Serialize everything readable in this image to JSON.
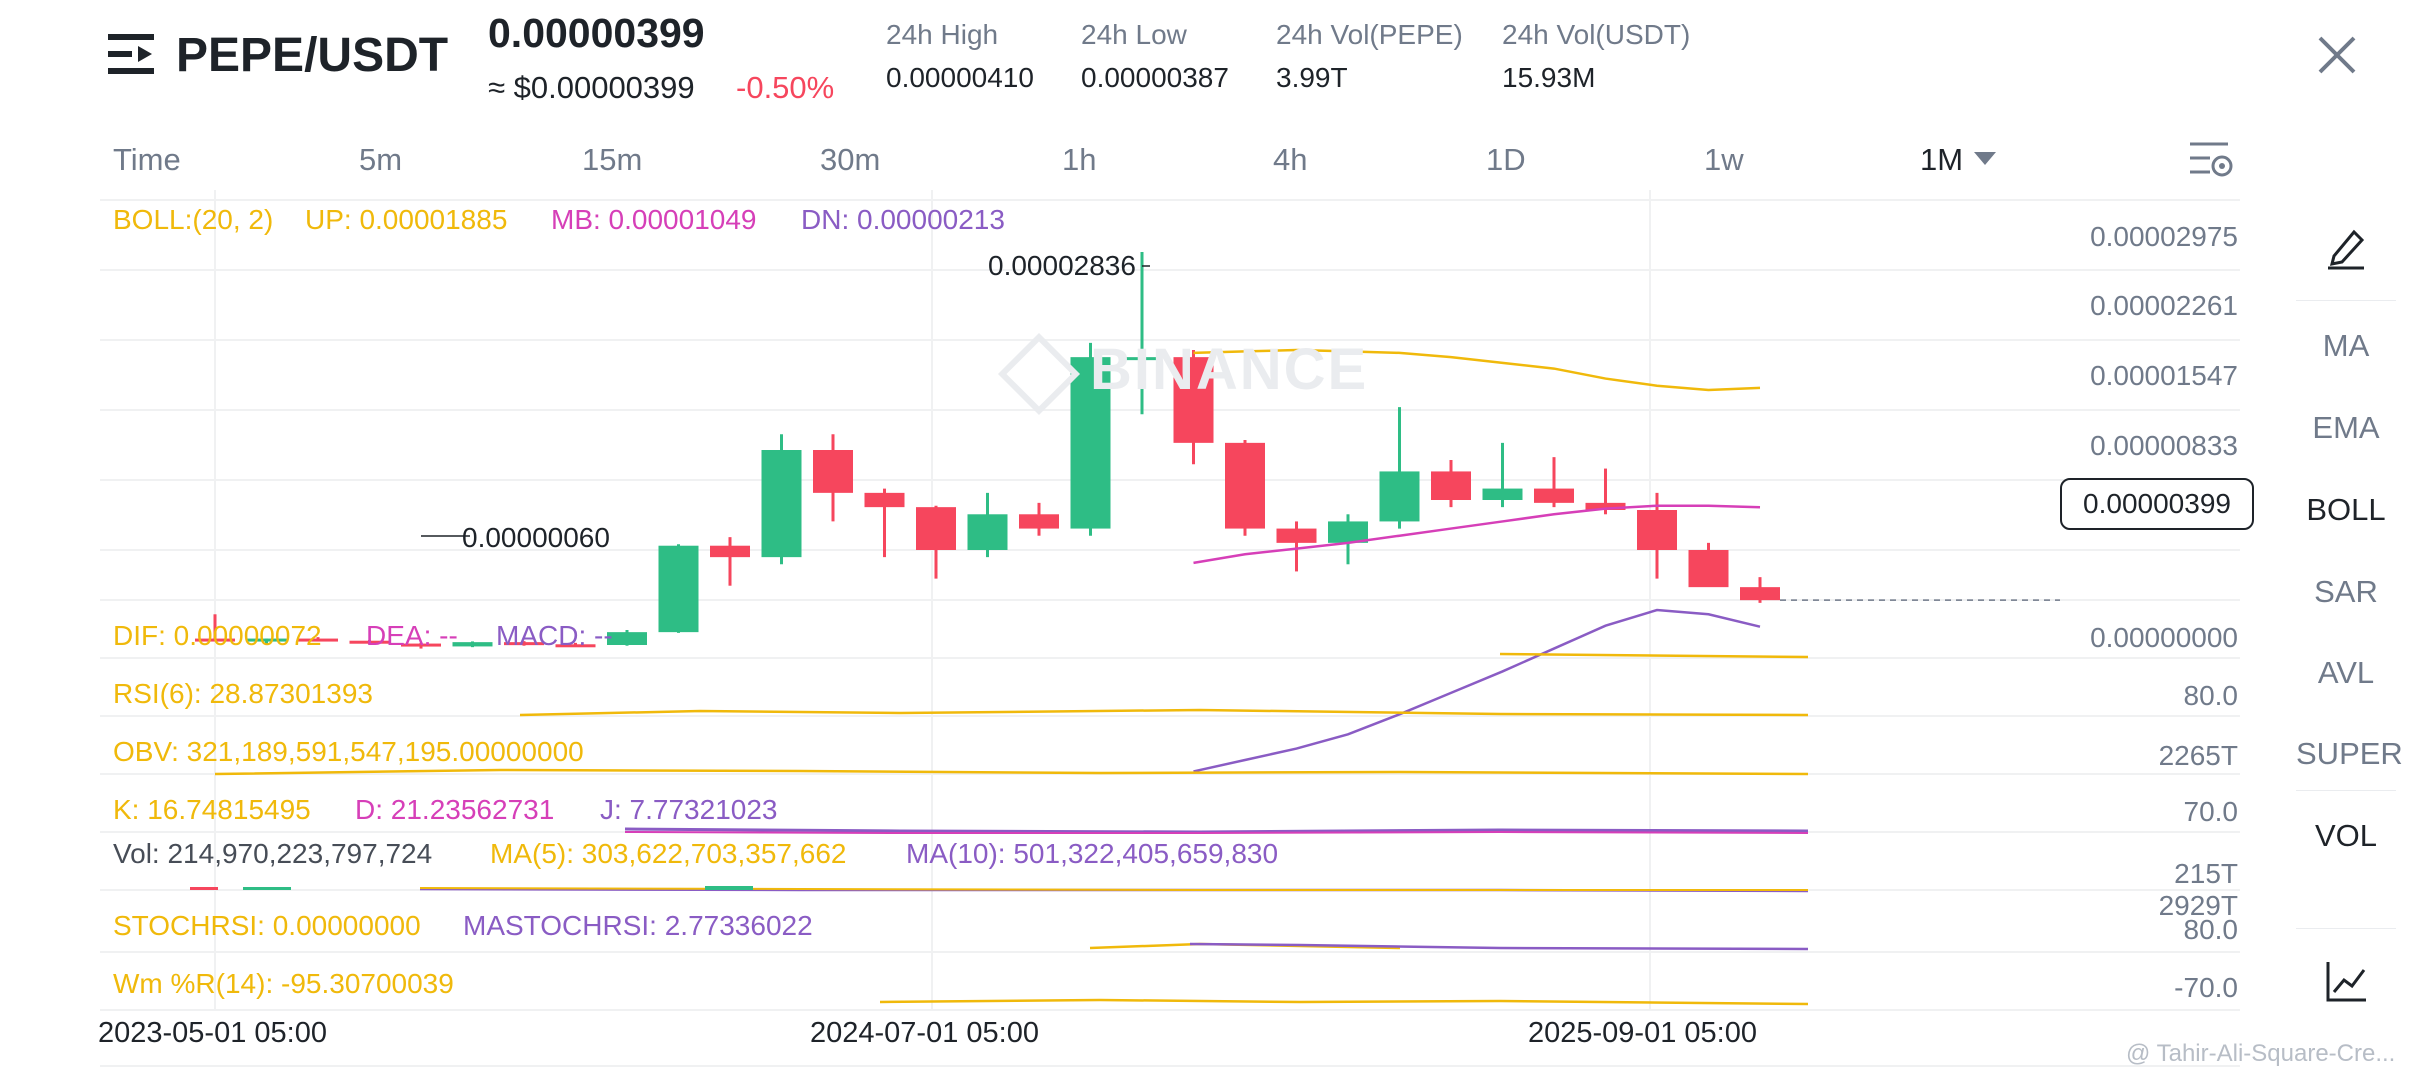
{
  "header": {
    "pair": "PEPE/USDT",
    "last_price": "0.00000399",
    "usd_price": "≈ $0.00000399",
    "change": "-0.50%",
    "stats": [
      {
        "label": "24h High",
        "value": "0.00000410"
      },
      {
        "label": "24h Low",
        "value": "0.00000387"
      },
      {
        "label": "24h Vol(PEPE)",
        "value": "3.99T"
      },
      {
        "label": "24h Vol(USDT)",
        "value": "15.93M"
      }
    ]
  },
  "intervals": [
    "Time",
    "5m",
    "15m",
    "30m",
    "1h",
    "4h",
    "1D",
    "1w",
    "1M"
  ],
  "active_interval": "1M",
  "side_panel": [
    "MA",
    "EMA",
    "BOLL",
    "SAR",
    "AVL",
    "SUPER",
    "VOL"
  ],
  "side_active": [
    "BOLL",
    "VOL"
  ],
  "indicators": {
    "boll": {
      "name": "BOLL:(20, 2)",
      "up": "UP: 0.00001885",
      "mb": "MB: 0.00001049",
      "dn": "DN: 0.00000213"
    },
    "macd": {
      "dif": "DIF: 0.00000072",
      "dea": "DEA: --",
      "macd": "MACD: --"
    },
    "rsi": "RSI(6): 28.87301393",
    "obv": "OBV: 321,189,591,547,195.00000000",
    "kdj": {
      "k": "K: 16.74815495",
      "d": "D: 21.23562731",
      "j": "J: 7.77321023"
    },
    "vol": {
      "vol": "Vol: 214,970,223,797,724",
      "ma5": "MA(5): 303,622,703,357,662",
      "ma10": "MA(10): 501,322,405,659,830"
    },
    "stochrsi": {
      "k": "STOCHRSI: 0.00000000",
      "d": "MASTOCHRSI: 2.77336022"
    },
    "wr": "Wm %R(14): -95.30700039"
  },
  "price_axis": [
    "0.00002975",
    "0.00002261",
    "0.00001547",
    "0.00000833"
  ],
  "current_price_label": "0.00000399",
  "high_marker": "0.00002836",
  "low_marker": "0.00000060",
  "sub_axis": {
    "macd": "0.00000000",
    "rsi": "80.0",
    "obv": "2265T",
    "kdj": "70.0",
    "vol": "215T",
    "vol_top": "2929T",
    "stochrsi": "80.0",
    "wr": "-70.0"
  },
  "dates": [
    "2023-05-01 05:00",
    "2024-07-01 05:00",
    "2025-09-01 05:00"
  ],
  "watermark": "BINANCE",
  "credit": "@ Tahir-Ali-Square-Cre...",
  "colors": {
    "up": "#2ebd85",
    "down": "#f6465d",
    "boll_up": "#f0b90b",
    "boll_mb": "#d63fb8",
    "boll_dn": "#8a5cc4",
    "label_yellow": "#f0b90b"
  },
  "chart_data": {
    "type": "candlestick",
    "interval": "1M",
    "candles": [
      {
        "o": 1.3e-06,
        "h": 3e-06,
        "l": 1.2e-06,
        "c": 1.2e-06
      },
      {
        "o": 1.2e-06,
        "h": 1.3e-06,
        "l": 9e-07,
        "c": 1.3e-06
      },
      {
        "o": 1.3e-06,
        "h": 1.4e-06,
        "l": 1.1e-06,
        "c": 1.15e-06
      },
      {
        "o": 1.15e-06,
        "h": 1.2e-06,
        "l": 9e-07,
        "c": 9.5e-07
      },
      {
        "o": 9.5e-07,
        "h": 1e-06,
        "l": 6e-07,
        "c": 7.5e-07
      },
      {
        "o": 7.5e-07,
        "h": 1.1e-06,
        "l": 7e-07,
        "c": 1.05e-06
      },
      {
        "o": 1.05e-06,
        "h": 1.12e-06,
        "l": 8e-07,
        "c": 9e-07
      },
      {
        "o": 9e-07,
        "h": 1e-06,
        "l": 8e-07,
        "c": 8.5e-07
      },
      {
        "o": 8.5e-07,
        "h": 1.9e-06,
        "l": 8e-07,
        "c": 1.75e-06
      },
      {
        "o": 1.75e-06,
        "h": 7.9e-06,
        "l": 1.7e-06,
        "c": 7.8e-06
      },
      {
        "o": 7.8e-06,
        "h": 8.4e-06,
        "l": 5e-06,
        "c": 7e-06
      },
      {
        "o": 7e-06,
        "h": 1.56e-05,
        "l": 6.5e-06,
        "c": 1.45e-05
      },
      {
        "o": 1.45e-05,
        "h": 1.56e-05,
        "l": 9.5e-06,
        "c": 1.15e-05
      },
      {
        "o": 1.15e-05,
        "h": 1.18e-05,
        "l": 7e-06,
        "c": 1.05e-05
      },
      {
        "o": 1.05e-05,
        "h": 1.06e-05,
        "l": 5.5e-06,
        "c": 7.5e-06
      },
      {
        "o": 7.5e-06,
        "h": 1.15e-05,
        "l": 7e-06,
        "c": 1e-05
      },
      {
        "o": 1e-05,
        "h": 1.08e-05,
        "l": 8.5e-06,
        "c": 9e-06
      },
      {
        "o": 9e-06,
        "h": 2.2e-05,
        "l": 8.5e-06,
        "c": 2.1e-05
      },
      {
        "o": 2.1e-05,
        "h": 2.836e-05,
        "l": 1.7e-05,
        "c": 2.1e-05
      },
      {
        "o": 2.1e-05,
        "h": 2.15e-05,
        "l": 1.35e-05,
        "c": 1.5e-05
      },
      {
        "o": 1.5e-05,
        "h": 1.52e-05,
        "l": 8.5e-06,
        "c": 9e-06
      },
      {
        "o": 9e-06,
        "h": 9.5e-06,
        "l": 6e-06,
        "c": 8e-06
      },
      {
        "o": 8e-06,
        "h": 1e-05,
        "l": 6.5e-06,
        "c": 9.5e-06
      },
      {
        "o": 9.5e-06,
        "h": 1.75e-05,
        "l": 9e-06,
        "c": 1.3e-05
      },
      {
        "o": 1.3e-05,
        "h": 1.38e-05,
        "l": 1.05e-05,
        "c": 1.1e-05
      },
      {
        "o": 1.1e-05,
        "h": 1.5e-05,
        "l": 1.05e-05,
        "c": 1.18e-05
      },
      {
        "o": 1.18e-05,
        "h": 1.4e-05,
        "l": 1.05e-05,
        "c": 1.08e-05
      },
      {
        "o": 1.08e-05,
        "h": 1.32e-05,
        "l": 1e-05,
        "c": 1.03e-05
      },
      {
        "o": 1.03e-05,
        "h": 1.15e-05,
        "l": 5.5e-06,
        "c": 7.5e-06
      },
      {
        "o": 7.5e-06,
        "h": 8e-06,
        "l": 5e-06,
        "c": 4.9e-06
      },
      {
        "o": 4.9e-06,
        "h": 5.6e-06,
        "l": 3.8e-06,
        "c": 3.99e-06
      }
    ],
    "boll_up": [
      2.13e-05,
      2.14e-05,
      2.15e-05,
      2.14e-05,
      2.13e-05,
      2.1e-05,
      2.06e-05,
      2.02e-05,
      1.95e-05,
      1.9e-05,
      1.87e-05,
      1.885e-05
    ],
    "boll_mb": [
      6.6e-06,
      7.2e-06,
      7.6e-06,
      8e-06,
      8.5e-06,
      9e-06,
      9.5e-06,
      1e-05,
      1.04e-05,
      1.06e-05,
      1.06e-05,
      1.049e-05
    ],
    "boll_dn": [
      -8e-06,
      -7.2e-06,
      -6.4e-06,
      -5.4e-06,
      -4e-06,
      -2.5e-06,
      -1e-06,
      6e-07,
      2.2e-06,
      3.3e-06,
      3e-06,
      2.13e-06
    ],
    "ylim": [
      -1e-05,
      3.2e-05
    ]
  }
}
